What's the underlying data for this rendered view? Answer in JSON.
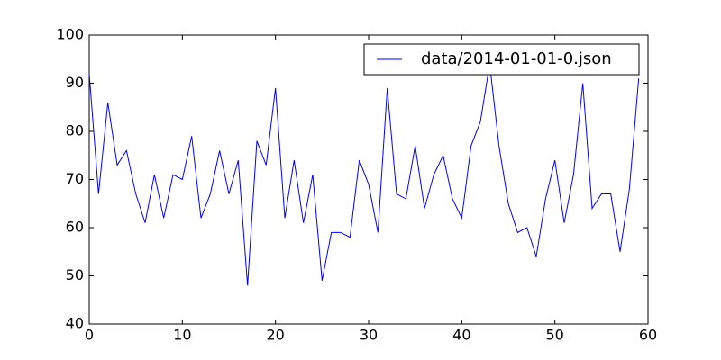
{
  "chart_data": {
    "type": "line",
    "x": [
      0,
      1,
      2,
      3,
      4,
      5,
      6,
      7,
      8,
      9,
      10,
      11,
      12,
      13,
      14,
      15,
      16,
      17,
      18,
      19,
      20,
      21,
      22,
      23,
      24,
      25,
      26,
      27,
      28,
      29,
      30,
      31,
      32,
      33,
      34,
      35,
      36,
      37,
      38,
      39,
      40,
      41,
      42,
      43,
      44,
      45,
      46,
      47,
      48,
      49,
      50,
      51,
      52,
      53,
      54,
      55,
      56,
      57,
      58,
      59
    ],
    "series": [
      {
        "name": "data/2014-01-01-0.json",
        "color": "#0000ff",
        "values": [
          92,
          67,
          86,
          73,
          76,
          67,
          61,
          71,
          62,
          71,
          70,
          79,
          62,
          67,
          76,
          67,
          74,
          48,
          78,
          73,
          89,
          62,
          74,
          61,
          71,
          49,
          59,
          59,
          58,
          74,
          69,
          59,
          89,
          67,
          66,
          77,
          64,
          71,
          75,
          66,
          62,
          77,
          82,
          94,
          77,
          65,
          59,
          60,
          54,
          66,
          74,
          61,
          71,
          90,
          64,
          67,
          67,
          55,
          68,
          91
        ]
      }
    ],
    "xlim": [
      0,
      60
    ],
    "xticks": [
      0,
      10,
      20,
      30,
      40,
      50,
      60
    ],
    "ylim": [
      40,
      100
    ],
    "yticks": [
      40,
      50,
      60,
      70,
      80,
      90,
      100
    ],
    "grid": false,
    "legend": "upper right"
  }
}
